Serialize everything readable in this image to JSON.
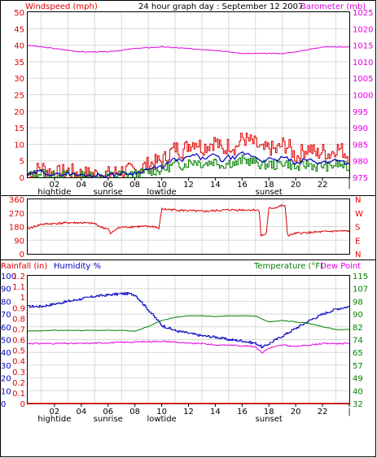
{
  "header": {
    "title": "24 hour graph day : September 12 2007",
    "left_label": "Windspeed (mph)",
    "right_label": "Barometer (mb)"
  },
  "colors": {
    "wind_gust": "#e00000",
    "wind_avg": "#0000c0",
    "wind_low": "#008000",
    "barometer": "#e000e0",
    "direction": "#e00000",
    "humidity": "#0000c0",
    "temperature": "#008000",
    "dew_point": "#e000e0",
    "rainfall": "#e00000",
    "grid": "#d8d8d8",
    "frame": "#000000"
  },
  "x_axis": {
    "time_ticks": [
      "02",
      "04",
      "06",
      "08",
      "10",
      "12",
      "14",
      "16",
      "18",
      "20",
      "22",
      "|"
    ],
    "events": [
      {
        "hour": 2.0,
        "label": "hightide"
      },
      {
        "hour": 6.0,
        "label": "sunrise"
      },
      {
        "hour": 10.0,
        "label": "lowtide"
      },
      {
        "hour": 18.0,
        "label": "sunset"
      }
    ]
  },
  "middle_panel": {
    "degree_ticks": [
      "360",
      "270",
      "180",
      "90",
      "0"
    ],
    "compass": [
      "N",
      "W",
      "S",
      "E",
      "N"
    ]
  },
  "bottom_panel": {
    "rain_label": "Rainfall (in)",
    "humidity_label": "Humidity %",
    "temperature_label": "Temperature (°F)",
    "dew_label": "Dew Point",
    "humidity_ticks": [
      "100",
      "90",
      "80",
      "70",
      "60",
      "50",
      "40",
      "30",
      "20",
      "10",
      "0"
    ],
    "rain_ticks": [
      "1.2",
      "1.1",
      "1",
      "0.9",
      "0.8",
      "0.7",
      "0.6",
      "0.5",
      "0.4",
      "0.3",
      "0.2",
      "0.1",
      "0"
    ],
    "temp_ticks": [
      "115",
      "107",
      "98",
      "90",
      "82",
      "74",
      "65",
      "57",
      "49",
      "40",
      "32"
    ]
  },
  "chart_data": [
    {
      "type": "line",
      "x_unit": "hour of day",
      "ylim_left": [
        0,
        50
      ],
      "ylim_right": [
        975,
        1025
      ],
      "series": [
        {
          "name": "Windspeed (mph)",
          "axis": "left",
          "x": [
            0,
            1,
            2,
            3,
            4,
            5,
            6,
            7,
            8,
            9,
            10,
            10.5,
            11,
            11.5,
            12,
            12.5,
            13,
            13.5,
            14,
            14.5,
            15,
            15.5,
            16,
            16.5,
            17,
            17.5,
            18,
            18.5,
            19,
            19.5,
            20,
            20.5,
            21,
            21.5,
            22,
            22.5,
            23,
            23.5,
            24
          ],
          "y": [
            1,
            3,
            1,
            2,
            1,
            1,
            1,
            2,
            2,
            4,
            5,
            7,
            9,
            8,
            10,
            11,
            9,
            10,
            11,
            8,
            10,
            9,
            12,
            11,
            10,
            8,
            9,
            8,
            10,
            9,
            6,
            8,
            9,
            7,
            8,
            7,
            9,
            8,
            6
          ]
        },
        {
          "name": "Barometer (mb)",
          "axis": "right",
          "x": [
            0,
            2,
            4,
            6,
            8,
            10,
            12,
            14,
            16,
            17.5,
            19,
            20,
            22,
            24
          ],
          "y": [
            1015,
            1014,
            1013,
            1013,
            1014,
            1014.5,
            1014,
            1013.5,
            1012.5,
            1012.5,
            1012.5,
            1013,
            1014.5,
            1014.5
          ]
        }
      ]
    },
    {
      "type": "line",
      "x_unit": "hour of day",
      "ylim": [
        0,
        360
      ],
      "series": [
        {
          "name": "Wind direction",
          "x": [
            0,
            1,
            2,
            3,
            3.5,
            4,
            5,
            5.5,
            6,
            6.2,
            6.6,
            7,
            8,
            9,
            9.5,
            9.8,
            10,
            11,
            12,
            13,
            14,
            15,
            16,
            16.5,
            17,
            17.3,
            17.4,
            17.8,
            18,
            18.5,
            19,
            19.2,
            19.4,
            20,
            21,
            22,
            23,
            24
          ],
          "y": [
            165,
            195,
            200,
            205,
            205,
            205,
            200,
            175,
            165,
            130,
            165,
            175,
            180,
            180,
            180,
            165,
            295,
            290,
            285,
            280,
            285,
            290,
            290,
            290,
            290,
            285,
            120,
            130,
            300,
            305,
            320,
            315,
            120,
            135,
            140,
            145,
            150,
            150
          ]
        }
      ]
    },
    {
      "type": "line",
      "x_unit": "hour of day",
      "ylim_left": [
        0,
        100
      ],
      "ylim_right": [
        32,
        115
      ],
      "ylim_rain": [
        0,
        1.2
      ],
      "series": [
        {
          "name": "Humidity %",
          "axis": "left",
          "x": [
            0,
            1,
            2,
            3,
            4,
            5,
            6,
            7,
            7.5,
            8,
            9,
            9.5,
            10,
            11,
            12,
            13,
            14,
            15,
            16,
            17,
            17.5,
            18,
            19,
            20,
            21,
            22,
            23,
            24
          ],
          "y": [
            76,
            76,
            78,
            80,
            82,
            84,
            85,
            86,
            86,
            85,
            73,
            67,
            61,
            57,
            55,
            53,
            52,
            50,
            49,
            47,
            44,
            47,
            53,
            59,
            65,
            70,
            74,
            76
          ]
        },
        {
          "name": "Temperature (°F)",
          "axis": "right",
          "x": [
            0,
            2,
            4,
            6,
            7,
            8,
            9,
            10,
            11,
            12,
            13,
            14,
            15,
            16,
            17,
            17.5,
            18,
            19,
            20,
            21,
            22,
            23,
            24
          ],
          "y": [
            79,
            79.5,
            79.5,
            79.5,
            79.5,
            79,
            82,
            86,
            88,
            89,
            89,
            88.5,
            89,
            89,
            89,
            87,
            85,
            86,
            85,
            84,
            82,
            80,
            80
          ]
        },
        {
          "name": "Dew Point",
          "axis": "right",
          "x": [
            0,
            2,
            4,
            6,
            8,
            10,
            11,
            12,
            13,
            14,
            15,
            16,
            17,
            17.5,
            18,
            18.5,
            19,
            20,
            21,
            22,
            23,
            24
          ],
          "y": [
            71,
            71,
            71,
            71.5,
            72,
            72.5,
            72,
            71,
            71,
            70,
            70,
            69.5,
            69,
            65,
            68,
            69,
            70,
            69,
            70,
            71,
            71,
            71
          ]
        },
        {
          "name": "Rainfall (in)",
          "axis": "rain",
          "x": [
            0,
            24
          ],
          "y": [
            0,
            0
          ]
        }
      ]
    }
  ]
}
